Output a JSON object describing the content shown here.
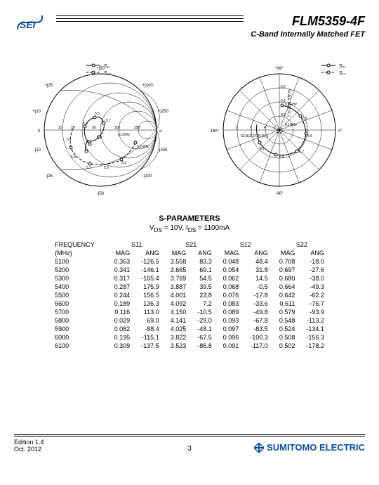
{
  "header": {
    "part_number": "FLM5359-4F",
    "subtitle": "C-Band Internally Matched FET",
    "logo_color": "#0a4f9f"
  },
  "smith_chart": {
    "legend": [
      "S₁₁",
      "S₂₂"
    ],
    "rim_labels": [
      "+j50",
      "+j100",
      "+j250",
      "∞",
      "-j250",
      "-j100",
      "-j50",
      "-j25",
      "-j10",
      "0",
      "+j10",
      "+j25"
    ],
    "real_labels": [
      "10",
      "25",
      "50",
      "100",
      "250"
    ],
    "freq_markers": [
      "5.3",
      "5.5",
      "5.7",
      "5.1GHz",
      "5.9",
      "6.1",
      "5.3",
      "5.5",
      "5.7",
      "5.1GHz",
      "5.9",
      "6.1"
    ],
    "background": "#ffffff",
    "line_color": "#000000"
  },
  "polar_chart": {
    "legend": [
      "S₂₁",
      "S₁₂"
    ],
    "angle_labels": [
      "+90°",
      "0°",
      "-90°",
      "180°"
    ],
    "s21_scale": [
      "2",
      "4",
      "6",
      "8"
    ],
    "s21_scale_label": "SCALE FOR |S₂₁|",
    "s12_scale": [
      "0.5",
      "0.1",
      "0.2"
    ],
    "s12_scale_label": "SCALE FOR |S₁₂|",
    "freq_markers": [
      "5.1GHz",
      "5.3",
      "5.5",
      "5.7",
      "5.9",
      "6.1",
      "5.1GHz",
      "5.3",
      "5.5",
      "5.7"
    ],
    "background": "#ffffff",
    "line_color": "#000000"
  },
  "sparams": {
    "title": "S-PARAMETERS",
    "conditions": "V_DS = 10V, I_DS = 1100mA",
    "freq_label": "FREQUENCY",
    "freq_unit": "(MHz)",
    "columns": [
      "S11",
      "S21",
      "S12",
      "S22"
    ],
    "subcolumns": [
      "MAG",
      "ANG"
    ],
    "rows": [
      {
        "freq": "5100",
        "s11_mag": "0.363",
        "s11_ang": "-126.5",
        "s21_mag": "3.558",
        "s21_ang": "83.3",
        "s12_mag": "0.048",
        "s12_ang": "48.4",
        "s22_mag": "0.708",
        "s22_ang": "-18.0"
      },
      {
        "freq": "5200",
        "s11_mag": "0.341",
        "s11_ang": "-146.1",
        "s21_mag": "3.665",
        "s21_ang": "69.1",
        "s12_mag": "0.054",
        "s12_ang": "31.8",
        "s22_mag": "0.697",
        "s22_ang": "-27.6"
      },
      {
        "freq": "5300",
        "s11_mag": "0.317",
        "s11_ang": "-165.4",
        "s21_mag": "3.769",
        "s21_ang": "54.5",
        "s12_mag": "0.062",
        "s12_ang": "14.5",
        "s22_mag": "0.680",
        "s22_ang": "-38.0"
      },
      {
        "freq": "5400",
        "s11_mag": "0.287",
        "s11_ang": "175.9",
        "s21_mag": "3.887",
        "s21_ang": "39.5",
        "s12_mag": "0.068",
        "s12_ang": "-0.5",
        "s22_mag": "0.664",
        "s22_ang": "-49.3"
      },
      {
        "freq": "5500",
        "s11_mag": "0.244",
        "s11_ang": "156.5",
        "s21_mag": "4.001",
        "s21_ang": "23.8",
        "s12_mag": "0.076",
        "s12_ang": "-17.8",
        "s22_mag": "0.642",
        "s22_ang": "-62.2"
      },
      {
        "freq": "5600",
        "s11_mag": "0.189",
        "s11_ang": "136.3",
        "s21_mag": "4.092",
        "s21_ang": "7.2",
        "s12_mag": "0.083",
        "s12_ang": "-33.6",
        "s22_mag": "0.611",
        "s22_ang": "-76.7"
      },
      {
        "freq": "5700",
        "s11_mag": "0.116",
        "s11_ang": "113.0",
        "s21_mag": "4.150",
        "s21_ang": "-10.5",
        "s12_mag": "0.089",
        "s12_ang": "-49.8",
        "s22_mag": "0.579",
        "s22_ang": "-93.9"
      },
      {
        "freq": "5800",
        "s11_mag": "0.029",
        "s11_ang": "69.0",
        "s21_mag": "4.141",
        "s21_ang": "-29.0",
        "s12_mag": "0.093",
        "s12_ang": "-67.8",
        "s22_mag": "0.548",
        "s22_ang": "-113.2"
      },
      {
        "freq": "5900",
        "s11_mag": "0.082",
        "s11_ang": "-88.4",
        "s21_mag": "4.025",
        "s21_ang": "-48.1",
        "s12_mag": "0.097",
        "s12_ang": "-83.5",
        "s22_mag": "0.524",
        "s22_ang": "-134.1"
      },
      {
        "freq": "6000",
        "s11_mag": "0.195",
        "s11_ang": "-115.1",
        "s21_mag": "3.822",
        "s21_ang": "-67.5",
        "s12_mag": "0.096",
        "s12_ang": "-100.3",
        "s22_mag": "0.508",
        "s22_ang": "-156.3"
      },
      {
        "freq": "6100",
        "s11_mag": "0.309",
        "s11_ang": "-137.5",
        "s21_mag": "3.523",
        "s21_ang": "-86.8",
        "s12_mag": "0.091",
        "s12_ang": "-117.0",
        "s22_mag": "0.502",
        "s22_ang": "-178.2"
      }
    ]
  },
  "footer": {
    "edition": "Edition 1.4",
    "date": "Oct. 2012",
    "page": "3",
    "company": "SUMITOMO ELECTRIC",
    "company_color": "#0a4f9f"
  }
}
